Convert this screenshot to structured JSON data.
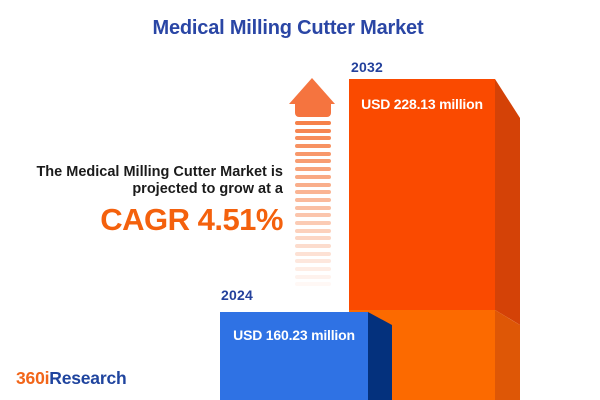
{
  "colors": {
    "title_blue": "#2a46a5",
    "year_navy": "#24419c",
    "text_dark": "#1b1b1b",
    "cagr_orange": "#f4610d",
    "bar_blue_front": "#2f72e4",
    "bar_blue_side": "#04317d",
    "bar_orange_front_top": "#fa4a00",
    "bar_orange_front_bottom": "#fc6a00",
    "bar_orange_side_top": "#d44207",
    "bar_orange_side_bottom": "#de5706",
    "arrow_orange": "#f5743f",
    "stripe_orange": "#f6814a",
    "logo_orange": "#f2661a",
    "logo_navy": "#1f449e"
  },
  "header": {
    "title": "Medical Milling Cutter Market"
  },
  "tagline": {
    "line1": "The Medical Milling Cutter Market is",
    "line2": "projected to grow at a",
    "cagr": "CAGR 4.51%"
  },
  "chart": {
    "bars": [
      {
        "year": "2024",
        "value_label": "USD 160.23 million"
      },
      {
        "year": "2032",
        "value_label": "USD 228.13 million"
      }
    ]
  },
  "chart_data": {
    "type": "bar",
    "title": "Medical Milling Cutter Market",
    "categories": [
      "2024",
      "2032"
    ],
    "values": [
      160.23,
      228.13
    ],
    "unit": "USD million",
    "data_labels": [
      "USD 160.23 million",
      "USD 228.13 million"
    ],
    "annotation": "CAGR 4.51%",
    "bar_colors": [
      "#2f72e4",
      "#fa4a00"
    ],
    "style": "3d-boxes, value labels inside bars, year labels above bars, grid off, no axes",
    "legend": "none"
  },
  "icons": {
    "growth_arrow": "up-arrow-fading-stripes"
  },
  "footer": {
    "logo_part1": "360i",
    "logo_part2": "Research"
  }
}
